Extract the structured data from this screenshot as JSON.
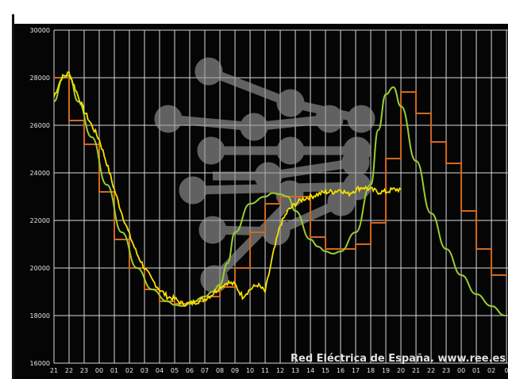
{
  "chart_data": {
    "type": "line",
    "credit": "Red Eléctrica de España.  www.ree.es",
    "ylim": [
      16000,
      30000
    ],
    "y_ticks": [
      16000,
      18000,
      20000,
      22000,
      24000,
      26000,
      28000,
      30000
    ],
    "x_tick_labels": [
      "21",
      "22",
      "23",
      "00",
      "01",
      "02",
      "03",
      "04",
      "05",
      "06",
      "07",
      "08",
      "09",
      "10",
      "11",
      "12",
      "13",
      "14",
      "15",
      "16",
      "17",
      "18",
      "19",
      "20",
      "21",
      "22",
      "23",
      "00",
      "01",
      "02",
      "0"
    ],
    "grid": true,
    "series": [
      {
        "key": "programmed_steps",
        "color": "#d2691e",
        "style": "step",
        "values": [
          28000,
          26200,
          25200,
          23200,
          21200,
          20000,
          19100,
          18600,
          18500,
          18600,
          18800,
          19200,
          20000,
          21500,
          22700,
          23000,
          23000,
          21300,
          20800,
          20800,
          21000,
          21900,
          24600,
          27400,
          26500,
          25300,
          24400,
          22400,
          20800,
          19700
        ]
      },
      {
        "key": "forecast_line",
        "color": "#9acd32",
        "style": "smooth",
        "x": [
          0.0,
          0.6,
          1.0,
          1.6,
          2.5,
          3.5,
          4.5,
          5.5,
          6.5,
          7.5,
          8.0,
          8.5,
          9.0,
          10.0,
          10.5,
          11.0,
          11.5,
          12.0,
          13.0,
          14.0,
          14.5,
          15.0,
          15.5,
          16.0,
          17.0,
          17.5,
          18.0,
          18.5,
          19.0,
          20.0,
          21.0,
          21.5,
          22.0,
          22.5,
          23.0,
          24.0,
          25.0,
          26.0,
          27.0,
          28.0,
          29.0,
          29.9
        ],
        "values": [
          27000,
          28000,
          28100,
          27000,
          25500,
          23500,
          21500,
          20000,
          19100,
          18600,
          18450,
          18400,
          18500,
          18800,
          19000,
          19300,
          20200,
          21500,
          22700,
          23000,
          23150,
          23100,
          23000,
          22400,
          21200,
          20900,
          20700,
          20600,
          20700,
          21500,
          23500,
          25800,
          27300,
          27600,
          26800,
          24500,
          22300,
          20800,
          19700,
          18900,
          18400,
          18000
        ]
      },
      {
        "key": "real_demand",
        "color": "#f5e100",
        "style": "noisy",
        "x": [
          0.0,
          0.5,
          1.0,
          1.5,
          2.0,
          2.5,
          3.0,
          3.5,
          4.0,
          4.5,
          5.0,
          5.5,
          6.0,
          6.5,
          7.0,
          7.5,
          8.0,
          8.5,
          9.0,
          9.5,
          10.0,
          10.5,
          11.0,
          11.5,
          12.0,
          12.5,
          13.0,
          13.5,
          14.0,
          14.5,
          15.0,
          15.5,
          16.0,
          16.5,
          17.0,
          17.5,
          18.0,
          18.5,
          19.0,
          19.5,
          20.0,
          20.5,
          21.0,
          21.5,
          22.0,
          22.5,
          23.0
        ],
        "values": [
          27200,
          28000,
          28200,
          27400,
          26600,
          26000,
          25400,
          24400,
          23300,
          22300,
          21400,
          20600,
          20000,
          19500,
          19100,
          18800,
          18700,
          18500,
          18500,
          18600,
          18700,
          18900,
          19200,
          19400,
          19300,
          18800,
          19100,
          19300,
          19000,
          20500,
          21800,
          22400,
          22700,
          22900,
          23000,
          23100,
          23200,
          23200,
          23300,
          23100,
          23300,
          23400,
          23300,
          23200,
          23200,
          23300,
          23300
        ]
      }
    ]
  }
}
